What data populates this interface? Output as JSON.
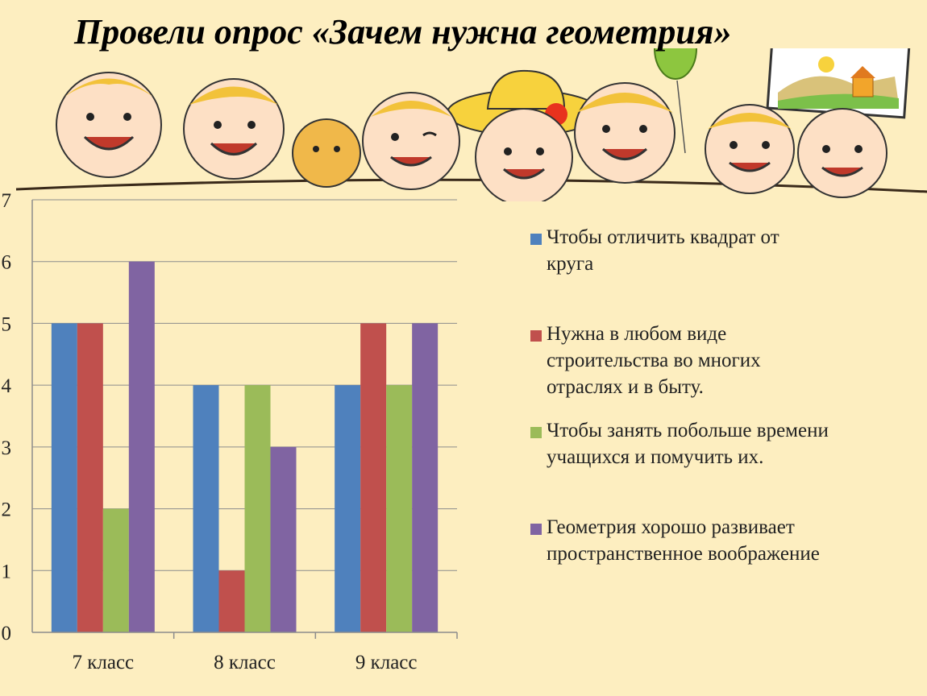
{
  "slide": {
    "title": "Провели опрос «Зачем нужна геометрия»"
  },
  "chart_data": {
    "type": "bar",
    "title": "",
    "xlabel": "",
    "ylabel": "",
    "categories": [
      "7 класс",
      "8 класс",
      "9 класс"
    ],
    "ylim": [
      0,
      7
    ],
    "yticks": [
      "0",
      "1",
      "2",
      "3",
      "4",
      "5",
      "6",
      "7"
    ],
    "grid": true,
    "legend_position": "right",
    "series": [
      {
        "name": "Чтобы отличить квадрат от круга",
        "color": "#4f81bd",
        "values": [
          5,
          4,
          4
        ]
      },
      {
        "name": "Нужна в любом виде строительства во многих отраслях и в быту.",
        "color": "#c0504d",
        "values": [
          5,
          1,
          5
        ]
      },
      {
        "name": "Чтобы занять побольше времени учащихся и помучить их.",
        "color": "#9bbb59",
        "values": [
          2,
          4,
          4
        ]
      },
      {
        "name": "Геометрия хорошо развивает пространственное воображение",
        "color": "#8064a2",
        "values": [
          6,
          3,
          5
        ]
      }
    ]
  }
}
